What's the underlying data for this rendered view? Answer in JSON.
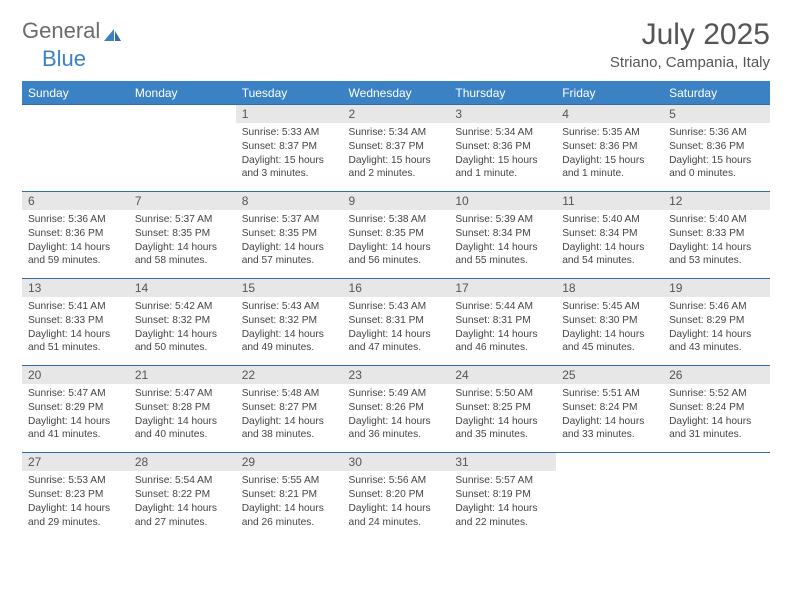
{
  "brand": {
    "part1": "General",
    "part2": "Blue"
  },
  "title": "July 2025",
  "location": "Striano, Campania, Italy",
  "header_bg": "#3b82c4",
  "rule_color": "#2f6ea8",
  "daynum_bg": "#e7e7e7",
  "weekdays": [
    "Sunday",
    "Monday",
    "Tuesday",
    "Wednesday",
    "Thursday",
    "Friday",
    "Saturday"
  ],
  "weeks": [
    [
      null,
      null,
      {
        "n": "1",
        "sr": "5:33 AM",
        "ss": "8:37 PM",
        "dl": "15 hours and 3 minutes."
      },
      {
        "n": "2",
        "sr": "5:34 AM",
        "ss": "8:37 PM",
        "dl": "15 hours and 2 minutes."
      },
      {
        "n": "3",
        "sr": "5:34 AM",
        "ss": "8:36 PM",
        "dl": "15 hours and 1 minute."
      },
      {
        "n": "4",
        "sr": "5:35 AM",
        "ss": "8:36 PM",
        "dl": "15 hours and 1 minute."
      },
      {
        "n": "5",
        "sr": "5:36 AM",
        "ss": "8:36 PM",
        "dl": "15 hours and 0 minutes."
      }
    ],
    [
      {
        "n": "6",
        "sr": "5:36 AM",
        "ss": "8:36 PM",
        "dl": "14 hours and 59 minutes."
      },
      {
        "n": "7",
        "sr": "5:37 AM",
        "ss": "8:35 PM",
        "dl": "14 hours and 58 minutes."
      },
      {
        "n": "8",
        "sr": "5:37 AM",
        "ss": "8:35 PM",
        "dl": "14 hours and 57 minutes."
      },
      {
        "n": "9",
        "sr": "5:38 AM",
        "ss": "8:35 PM",
        "dl": "14 hours and 56 minutes."
      },
      {
        "n": "10",
        "sr": "5:39 AM",
        "ss": "8:34 PM",
        "dl": "14 hours and 55 minutes."
      },
      {
        "n": "11",
        "sr": "5:40 AM",
        "ss": "8:34 PM",
        "dl": "14 hours and 54 minutes."
      },
      {
        "n": "12",
        "sr": "5:40 AM",
        "ss": "8:33 PM",
        "dl": "14 hours and 53 minutes."
      }
    ],
    [
      {
        "n": "13",
        "sr": "5:41 AM",
        "ss": "8:33 PM",
        "dl": "14 hours and 51 minutes."
      },
      {
        "n": "14",
        "sr": "5:42 AM",
        "ss": "8:32 PM",
        "dl": "14 hours and 50 minutes."
      },
      {
        "n": "15",
        "sr": "5:43 AM",
        "ss": "8:32 PM",
        "dl": "14 hours and 49 minutes."
      },
      {
        "n": "16",
        "sr": "5:43 AM",
        "ss": "8:31 PM",
        "dl": "14 hours and 47 minutes."
      },
      {
        "n": "17",
        "sr": "5:44 AM",
        "ss": "8:31 PM",
        "dl": "14 hours and 46 minutes."
      },
      {
        "n": "18",
        "sr": "5:45 AM",
        "ss": "8:30 PM",
        "dl": "14 hours and 45 minutes."
      },
      {
        "n": "19",
        "sr": "5:46 AM",
        "ss": "8:29 PM",
        "dl": "14 hours and 43 minutes."
      }
    ],
    [
      {
        "n": "20",
        "sr": "5:47 AM",
        "ss": "8:29 PM",
        "dl": "14 hours and 41 minutes."
      },
      {
        "n": "21",
        "sr": "5:47 AM",
        "ss": "8:28 PM",
        "dl": "14 hours and 40 minutes."
      },
      {
        "n": "22",
        "sr": "5:48 AM",
        "ss": "8:27 PM",
        "dl": "14 hours and 38 minutes."
      },
      {
        "n": "23",
        "sr": "5:49 AM",
        "ss": "8:26 PM",
        "dl": "14 hours and 36 minutes."
      },
      {
        "n": "24",
        "sr": "5:50 AM",
        "ss": "8:25 PM",
        "dl": "14 hours and 35 minutes."
      },
      {
        "n": "25",
        "sr": "5:51 AM",
        "ss": "8:24 PM",
        "dl": "14 hours and 33 minutes."
      },
      {
        "n": "26",
        "sr": "5:52 AM",
        "ss": "8:24 PM",
        "dl": "14 hours and 31 minutes."
      }
    ],
    [
      {
        "n": "27",
        "sr": "5:53 AM",
        "ss": "8:23 PM",
        "dl": "14 hours and 29 minutes."
      },
      {
        "n": "28",
        "sr": "5:54 AM",
        "ss": "8:22 PM",
        "dl": "14 hours and 27 minutes."
      },
      {
        "n": "29",
        "sr": "5:55 AM",
        "ss": "8:21 PM",
        "dl": "14 hours and 26 minutes."
      },
      {
        "n": "30",
        "sr": "5:56 AM",
        "ss": "8:20 PM",
        "dl": "14 hours and 24 minutes."
      },
      {
        "n": "31",
        "sr": "5:57 AM",
        "ss": "8:19 PM",
        "dl": "14 hours and 22 minutes."
      },
      null,
      null
    ]
  ],
  "labels": {
    "sunrise": "Sunrise: ",
    "sunset": "Sunset: ",
    "daylight": "Daylight: "
  }
}
